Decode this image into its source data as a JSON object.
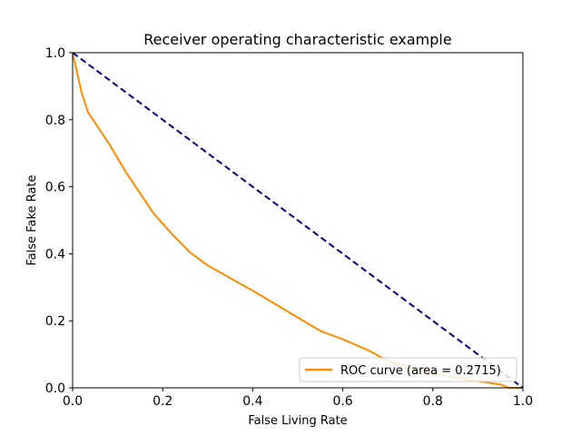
{
  "chart_data": {
    "type": "line",
    "title": "Receiver operating characteristic example",
    "xlabel": "False Living Rate",
    "ylabel": "False Fake Rate",
    "xlim": [
      0.0,
      1.0
    ],
    "ylim": [
      0.0,
      1.0
    ],
    "xticks": [
      0.0,
      0.2,
      0.4,
      0.6,
      0.8,
      1.0
    ],
    "yticks": [
      0.0,
      0.2,
      0.4,
      0.6,
      0.8,
      1.0
    ],
    "xtick_labels": [
      "0.0",
      "0.2",
      "0.4",
      "0.6",
      "0.8",
      "1.0"
    ],
    "ytick_labels": [
      "0.0",
      "0.2",
      "0.4",
      "0.6",
      "0.8",
      "1.0"
    ],
    "grid": false,
    "legend_position": "lower-right",
    "series": [
      {
        "name": "ROC curve (area = 0.2715)",
        "color": "#ff8c00",
        "style": "solid",
        "x": [
          0.0,
          0.01,
          0.02,
          0.035,
          0.05,
          0.08,
          0.12,
          0.15,
          0.18,
          0.22,
          0.26,
          0.3,
          0.34,
          0.4,
          0.45,
          0.5,
          0.55,
          0.6,
          0.66,
          0.7,
          0.75,
          0.8,
          0.85,
          0.9,
          0.95,
          0.97,
          1.0
        ],
        "y": [
          1.0,
          0.94,
          0.88,
          0.82,
          0.79,
          0.73,
          0.64,
          0.58,
          0.52,
          0.46,
          0.405,
          0.365,
          0.335,
          0.29,
          0.25,
          0.21,
          0.17,
          0.145,
          0.11,
          0.08,
          0.06,
          0.045,
          0.03,
          0.02,
          0.01,
          0.0,
          0.0
        ]
      },
      {
        "name": "",
        "color": "#000080",
        "style": "dashed",
        "x": [
          0.0,
          1.0
        ],
        "y": [
          1.0,
          0.0
        ]
      }
    ]
  }
}
